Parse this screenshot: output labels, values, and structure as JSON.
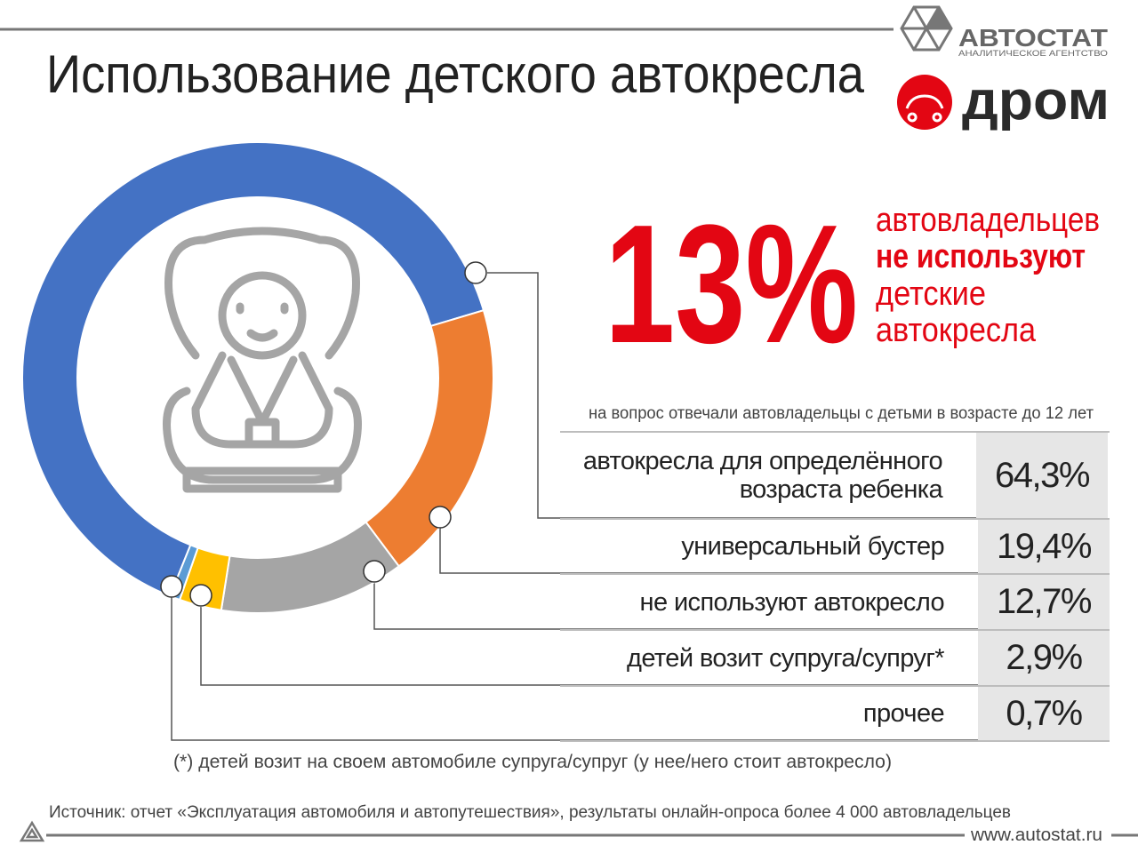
{
  "header": {
    "title": "Использование детского автокресла",
    "logos": {
      "autostat": "АВТОСТАТ",
      "autostat_subtitle": "АНАЛИТИЧЕСКОЕ АГЕНТСТВО",
      "drom": "дром"
    }
  },
  "highlight": {
    "figure": "13%",
    "lines": [
      "автовладельцев",
      "не используют",
      "детские",
      "автокресла"
    ]
  },
  "chart_data": {
    "type": "donut",
    "note": "на вопрос отвечали автовладельцы с детьми в возрасте до 12 лет",
    "categories": [
      "автокресла для определённого возраста ребенка",
      "универсальный бустер",
      "не используют автокресло",
      "детей возит супруга/супруг*",
      "прочее"
    ],
    "series": [
      {
        "name": null,
        "values": [
          64.3,
          19.4,
          12.7,
          2.9,
          0.7
        ],
        "value_labels": [
          "64,3%",
          "19,4%",
          "12,7%",
          "2,9%",
          "0,7%"
        ],
        "colors": [
          "#4472c4",
          "#ed7d31",
          "#a5a5a5",
          "#ffc000",
          "#5b9bd5"
        ]
      }
    ]
  },
  "footnote": "(*) детей возит на своем автомобиле супруга/супруг (у нее/него стоит автокресло)",
  "source": "Источник: отчет «Эксплуатация автомобиля и автопутешествия», результаты онлайн-опроса более 4 000 автовладельцев",
  "url": "www.autostat.ru"
}
